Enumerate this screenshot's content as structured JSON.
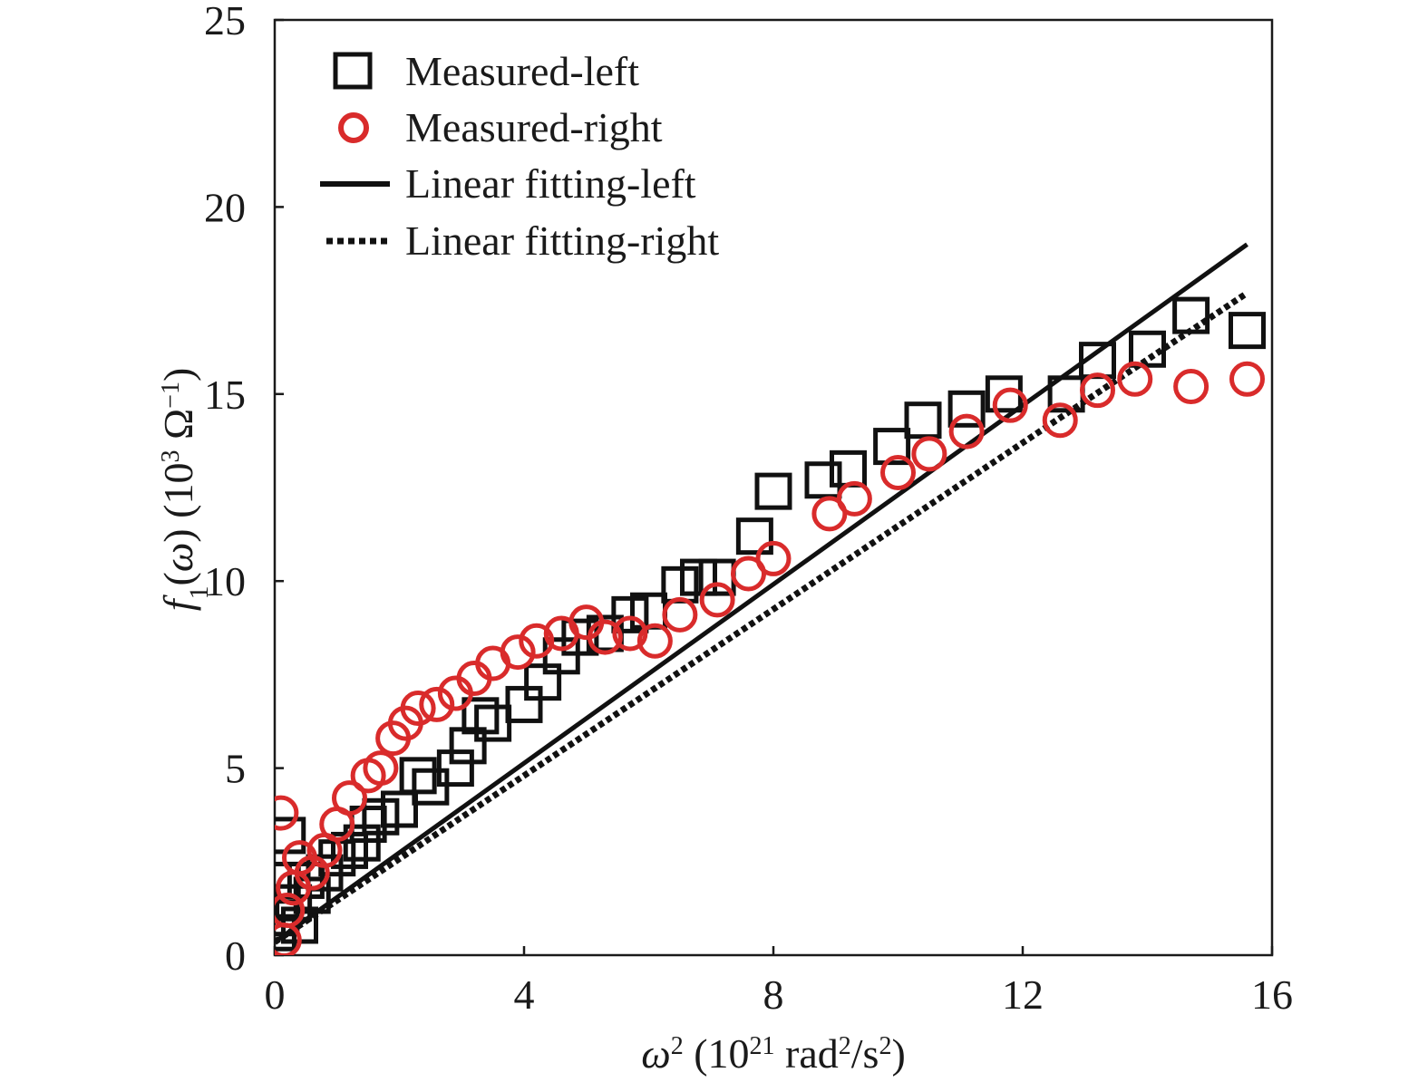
{
  "chart_data": {
    "type": "scatter",
    "x_axis": {
      "label_symbol": "ω",
      "label_sup": "2",
      "label_units_prefix": " (10",
      "label_units_exp": "21",
      "label_units_mid": " rad",
      "label_units_sup1": "2",
      "label_units_slash": "/s",
      "label_units_sup2": "2",
      "label_units_suffix": ")",
      "range": [
        0,
        16
      ],
      "ticks": [
        0,
        4,
        8,
        12,
        16
      ],
      "tick_labels": [
        "0",
        "4",
        "8",
        "12",
        "16"
      ]
    },
    "y_axis": {
      "label_f": "f",
      "label_sub": "1",
      "label_open": "(",
      "label_omega": "ω",
      "label_close": ")",
      "label_units_prefix": " (10",
      "label_units_exp": "3",
      "label_units_omega": " Ω",
      "label_units_neg": "−1",
      "label_units_suffix": ")",
      "range": [
        0,
        25
      ],
      "ticks": [
        0,
        5,
        10,
        15,
        20,
        25
      ],
      "tick_labels": [
        "0",
        "5",
        "10",
        "15",
        "20",
        "25"
      ]
    },
    "legend": {
      "position": "top-left",
      "entries": [
        "Measured-left",
        "Measured-right",
        "Linear fitting-left",
        "Linear fitting-right"
      ]
    },
    "series": [
      {
        "name": "Measured-left",
        "marker": "square",
        "color": "#111111",
        "points": [
          [
            0.05,
            0.6
          ],
          [
            0.1,
            1.0
          ],
          [
            0.12,
            2.0
          ],
          [
            0.2,
            3.2
          ],
          [
            0.3,
            1.4
          ],
          [
            0.4,
            0.8
          ],
          [
            0.5,
            2.0
          ],
          [
            0.6,
            1.6
          ],
          [
            0.8,
            2.2
          ],
          [
            1.0,
            2.6
          ],
          [
            1.2,
            2.8
          ],
          [
            1.4,
            3.0
          ],
          [
            1.5,
            3.5
          ],
          [
            1.7,
            3.7
          ],
          [
            2.0,
            3.9
          ],
          [
            2.3,
            4.8
          ],
          [
            2.5,
            4.5
          ],
          [
            2.9,
            5.0
          ],
          [
            3.1,
            5.6
          ],
          [
            3.3,
            6.4
          ],
          [
            3.5,
            6.2
          ],
          [
            4.0,
            6.7
          ],
          [
            4.3,
            7.3
          ],
          [
            4.6,
            8.0
          ],
          [
            4.9,
            8.5
          ],
          [
            5.3,
            8.6
          ],
          [
            5.7,
            9.1
          ],
          [
            6.0,
            9.2
          ],
          [
            6.5,
            9.9
          ],
          [
            6.8,
            10.1
          ],
          [
            7.1,
            10.1
          ],
          [
            7.7,
            11.2
          ],
          [
            8.0,
            12.4
          ],
          [
            8.8,
            12.7
          ],
          [
            9.2,
            13.0
          ],
          [
            9.9,
            13.6
          ],
          [
            10.4,
            14.3
          ],
          [
            11.1,
            14.6
          ],
          [
            11.7,
            15.0
          ],
          [
            12.7,
            15.0
          ],
          [
            13.2,
            15.9
          ],
          [
            14.0,
            16.2
          ],
          [
            14.7,
            17.1
          ],
          [
            15.6,
            16.7
          ]
        ]
      },
      {
        "name": "Measured-right",
        "marker": "circle",
        "color": "#d92b2b",
        "points": [
          [
            0.1,
            3.8
          ],
          [
            0.15,
            0.4
          ],
          [
            0.2,
            1.2
          ],
          [
            0.3,
            1.8
          ],
          [
            0.4,
            2.6
          ],
          [
            0.6,
            2.2
          ],
          [
            0.8,
            2.8
          ],
          [
            1.0,
            3.5
          ],
          [
            1.2,
            4.2
          ],
          [
            1.5,
            4.8
          ],
          [
            1.7,
            5.0
          ],
          [
            1.9,
            5.8
          ],
          [
            2.1,
            6.2
          ],
          [
            2.3,
            6.6
          ],
          [
            2.6,
            6.7
          ],
          [
            2.9,
            7.0
          ],
          [
            3.2,
            7.4
          ],
          [
            3.5,
            7.8
          ],
          [
            3.9,
            8.1
          ],
          [
            4.2,
            8.4
          ],
          [
            4.6,
            8.6
          ],
          [
            5.0,
            8.9
          ],
          [
            5.3,
            8.5
          ],
          [
            5.7,
            8.6
          ],
          [
            6.1,
            8.4
          ],
          [
            6.5,
            9.1
          ],
          [
            7.1,
            9.5
          ],
          [
            7.6,
            10.2
          ],
          [
            8.0,
            10.6
          ],
          [
            8.9,
            11.8
          ],
          [
            9.3,
            12.2
          ],
          [
            10.0,
            12.9
          ],
          [
            10.5,
            13.4
          ],
          [
            11.1,
            14.0
          ],
          [
            11.8,
            14.7
          ],
          [
            12.6,
            14.3
          ],
          [
            13.2,
            15.1
          ],
          [
            13.8,
            15.4
          ],
          [
            14.7,
            15.2
          ],
          [
            15.6,
            15.4
          ]
        ]
      },
      {
        "name": "Linear fitting-left",
        "type": "line",
        "style": "solid",
        "color": "#111111",
        "x": [
          0,
          15.6
        ],
        "y": [
          0.35,
          19.0
        ]
      },
      {
        "name": "Linear fitting-right",
        "type": "line",
        "style": "dotted",
        "color": "#111111",
        "x": [
          0,
          15.6
        ],
        "y": [
          0.35,
          17.7
        ]
      }
    ],
    "grid": false,
    "title": ""
  }
}
